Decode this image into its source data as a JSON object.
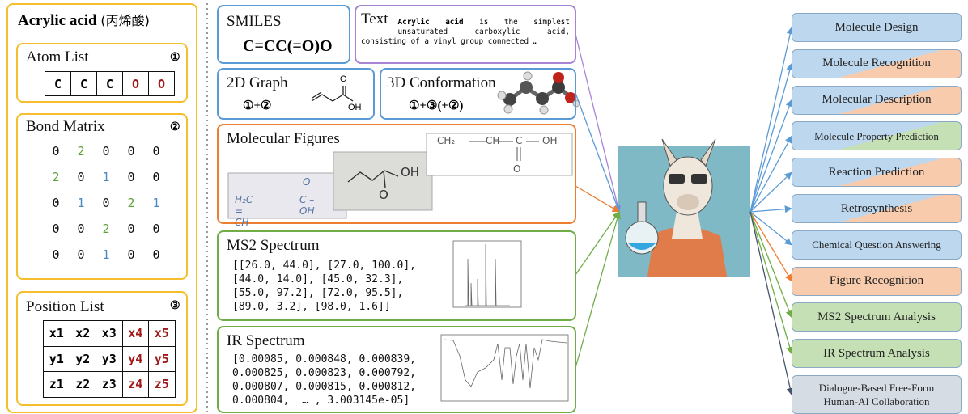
{
  "molecule": {
    "name": "Acrylic acid",
    "chinese": "(丙烯酸)"
  },
  "atom_list": {
    "title": "Atom List",
    "marker": "①",
    "atoms": [
      "C",
      "C",
      "C",
      "O",
      "O"
    ],
    "colors": [
      "#000000",
      "#000000",
      "#000000",
      "#a01818",
      "#a01818"
    ]
  },
  "bond_matrix": {
    "title": "Bond Matrix",
    "marker": "②",
    "rows": [
      [
        0,
        2,
        0,
        0,
        0
      ],
      [
        2,
        0,
        1,
        0,
        0
      ],
      [
        0,
        1,
        0,
        2,
        1
      ],
      [
        0,
        0,
        2,
        0,
        0
      ],
      [
        0,
        0,
        1,
        0,
        0
      ]
    ],
    "value_colors": {
      "1": "#4a8ac4",
      "2": "#5ea03a"
    }
  },
  "position_list": {
    "title": "Position List",
    "marker": "③",
    "rows": [
      [
        "x1",
        "x2",
        "x3",
        "x4",
        "x5"
      ],
      [
        "y1",
        "y2",
        "y3",
        "y4",
        "y5"
      ],
      [
        "z1",
        "z2",
        "z3",
        "z4",
        "z5"
      ]
    ],
    "colors": [
      "#000000",
      "#000000",
      "#000000",
      "#a01818",
      "#a01818"
    ]
  },
  "smiles": {
    "title": "SMILES",
    "value": "C=CC(=O)O"
  },
  "text": {
    "title": "Text",
    "bold": "Acrylic acid",
    "body": "is the simplest unsaturated carboxylic acid, consisting of a vinyl group connected …"
  },
  "graph_2d": {
    "title": "2D Graph",
    "formula": "①+②",
    "atoms": [
      "O",
      "OH"
    ]
  },
  "conformation_3d": {
    "title": "3D Conformation",
    "formula": "①+③(+②)"
  },
  "figures": {
    "title": "Molecular Figures",
    "printed": [
      "CH₂",
      "CH",
      "C",
      "OH",
      "O"
    ],
    "photo": [
      "OH",
      "O"
    ],
    "handwritten": [
      "H₂C = CH –",
      "C – OH",
      "O"
    ]
  },
  "ms2": {
    "title": "MS2 Spectrum",
    "lines": [
      "[[26.0, 44.0], [27.0, 100.0],",
      "[44.0, 14.0], [45.0, 32.3],",
      "[55.0, 97.2], [72.0, 95.5],",
      "[89.0, 3.2], [98.0, 1.6]]"
    ]
  },
  "ir": {
    "title": "IR Spectrum",
    "lines": [
      "[0.00085, 0.000848, 0.000839,",
      "0.000825, 0.000823, 0.000792,",
      "0.000807, 0.000815, 0.000812,",
      "0.000804,  … , 3.003145e-05]"
    ]
  },
  "tasks": [
    {
      "label": "Molecule Design",
      "colors": [
        "#bdd7ee"
      ]
    },
    {
      "label": "Molecule Recognition",
      "colors": [
        "#bdd7ee",
        "#f8cbad"
      ]
    },
    {
      "label": "Molecular Description",
      "colors": [
        "#bdd7ee",
        "#f8cbad"
      ]
    },
    {
      "label": "Molecule Property Prediction",
      "colors": [
        "#bdd7ee",
        "#c5e0b4"
      ]
    },
    {
      "label": "Reaction Prediction",
      "colors": [
        "#bdd7ee",
        "#f8cbad"
      ]
    },
    {
      "label": "Retrosynthesis",
      "colors": [
        "#bdd7ee",
        "#f8cbad"
      ]
    },
    {
      "label": "Chemical Question Answering",
      "colors": [
        "#bdd7ee"
      ]
    },
    {
      "label": "Figure Recognition",
      "colors": [
        "#f8cbad"
      ]
    },
    {
      "label": "MS2 Spectrum Analysis",
      "colors": [
        "#c5e0b4"
      ]
    },
    {
      "label": "IR Spectrum Analysis",
      "colors": [
        "#c5e0b4"
      ]
    },
    {
      "label": "Dialogue-Based Free-Form Human-AI Collaboration",
      "colors": [
        "#d6dce4"
      ]
    }
  ]
}
